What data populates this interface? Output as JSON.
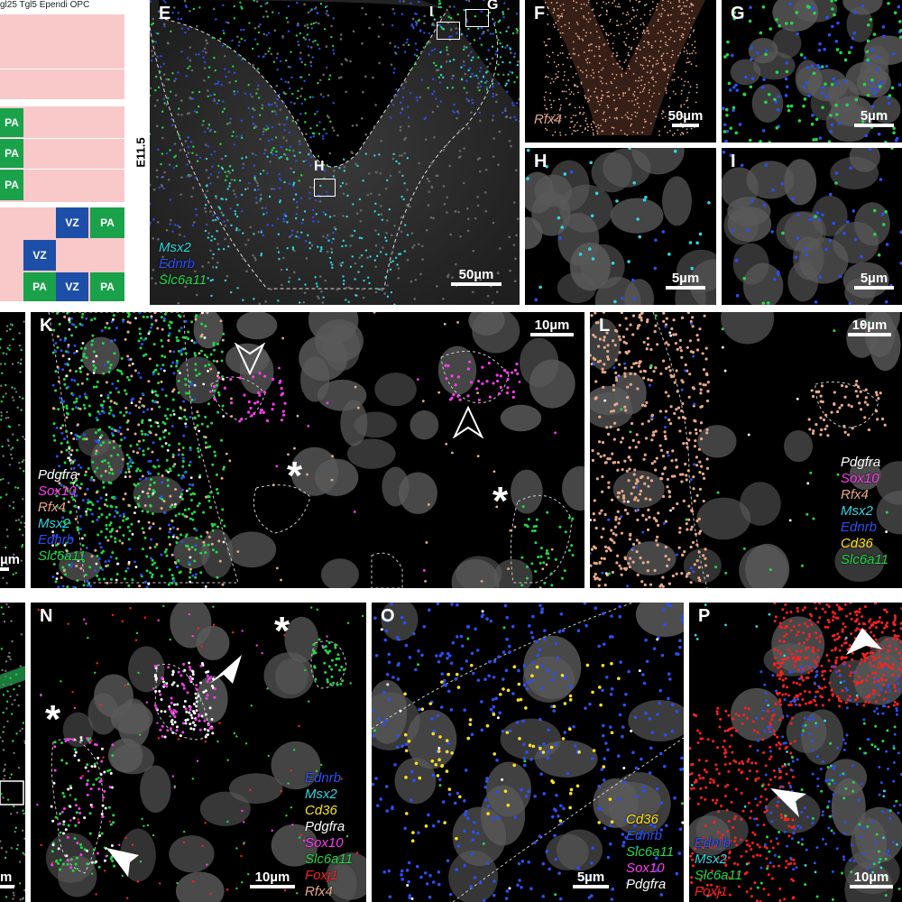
{
  "header": {
    "fragment": "gl25 Tgl5 Ependi OPC"
  },
  "stage_label": "E11.5",
  "table": {
    "rows": [
      {
        "cells": []
      },
      {
        "cells": []
      },
      {
        "cells": [
          "PA"
        ]
      },
      {
        "cells": [
          "PA"
        ]
      },
      {
        "cells": [
          "PA"
        ]
      },
      {
        "cells": [
          "VZ",
          "PA"
        ]
      },
      {
        "cells": [
          "VZ"
        ]
      },
      {
        "cells": [
          "PA",
          "VZ",
          "PA"
        ]
      }
    ]
  },
  "panels": {
    "E": {
      "label": "E",
      "boxes": [
        "I",
        "G",
        "H"
      ],
      "legend": [
        "Msx2",
        "Ednrb",
        "Slc6a11"
      ],
      "scale": "50µm"
    },
    "F": {
      "label": "F",
      "legend": [
        "Rfx4"
      ],
      "scale": "50µm"
    },
    "G": {
      "label": "G",
      "scale": "5µm"
    },
    "H": {
      "label": "H",
      "scale": "5µm"
    },
    "I": {
      "label": "I",
      "scale": "5µm"
    },
    "J_fragment": {
      "scale": "µm"
    },
    "K": {
      "label": "K",
      "legend": [
        "Pdgfra",
        "Sox10",
        "Rfx4",
        "Msx2",
        "Ednrb",
        "Slc6a11"
      ],
      "scale": "10µm"
    },
    "L": {
      "label": "L",
      "legend": [
        "Pdgfra",
        "Sox10",
        "Rfx4",
        "Msx2",
        "Ednrb",
        "Cd36",
        "Slc6a11"
      ],
      "scale": "10µm"
    },
    "M_fragment": {
      "scale": "m"
    },
    "N": {
      "label": "N",
      "legend": [
        "Ednrb",
        "Msx2",
        "Cd36",
        "Pdgfra",
        "Sox10",
        "Slc6a11",
        "Foxj1",
        "Rfx4"
      ],
      "scale": "10µm"
    },
    "O": {
      "label": "O",
      "legend": [
        "Cd36",
        "Ednrb",
        "Slc6a11",
        "Sox10",
        "Pdgfra"
      ],
      "scale": "5µm"
    },
    "P": {
      "label": "P",
      "legend": [
        "Ednrb",
        "Msx2",
        "Slc6a11",
        "Foxj1"
      ],
      "scale": "10µm"
    }
  },
  "colors": {
    "Msx2": "#2fd6e0",
    "Ednrb": "#2b4ff0",
    "Slc6a11": "#22d84a",
    "Rfx4": "#e8a88a",
    "Pdgfra": "#ffffff",
    "Sox10": "#ff3cf0",
    "Cd36": "#ffe21a",
    "Foxj1": "#ff2020",
    "table_pink": "#f9c9c9",
    "table_green": "#1aa24a",
    "table_blue": "#1e4fa8"
  }
}
